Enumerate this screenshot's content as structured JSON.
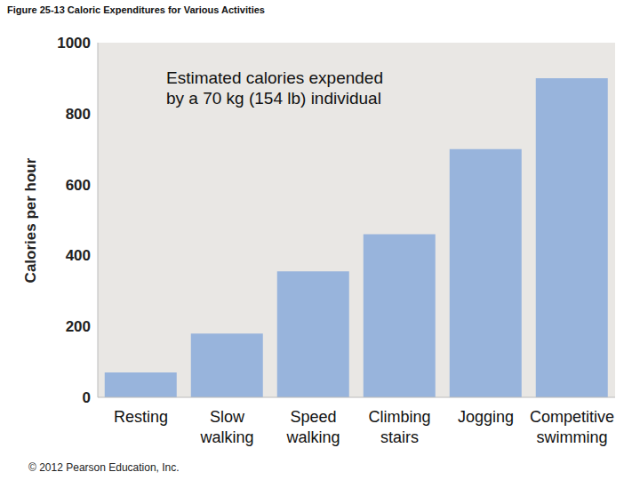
{
  "chart_data": {
    "type": "bar",
    "title": "Figure 25-13 Caloric Expenditures for Various Activities",
    "y_label": "Calories per hour",
    "annotation": [
      "Estimated calories expended",
      "by a 70 kg (154 lb) individual"
    ],
    "footnote": "© 2012 Pearson Education, Inc.",
    "categories": [
      "Resting",
      "Slow walking",
      "Speed walking",
      "Climbing stairs",
      "Jogging",
      "Competitive swimming"
    ],
    "values": [
      70,
      180,
      355,
      460,
      700,
      900
    ],
    "color": "#98b4dc",
    "ylim": [
      0,
      1000
    ],
    "yticks": [
      0,
      200,
      400,
      600,
      800,
      1000
    ],
    "grid": false
  }
}
